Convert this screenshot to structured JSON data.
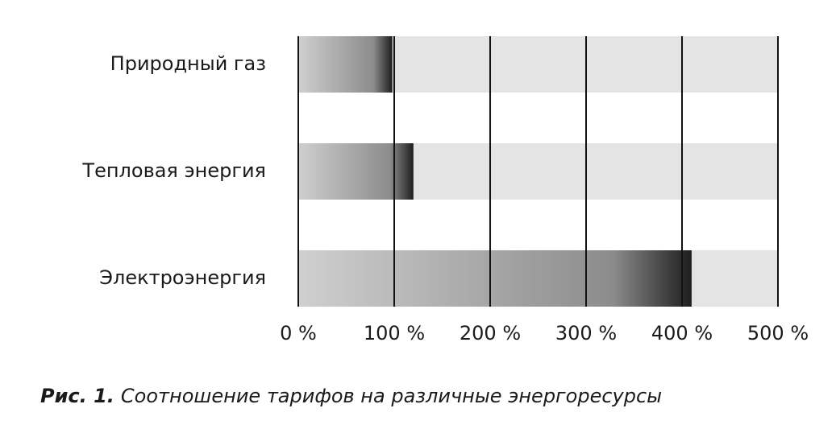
{
  "chart_data": {
    "type": "hbar",
    "categories": [
      "Природный газ",
      "Тепловая энергия",
      "Электроэнергия"
    ],
    "values": [
      98,
      120,
      410
    ],
    "color": "#1e1e1e",
    "band_color": "#e4e4e4",
    "xlim": [
      0,
      500
    ],
    "xticks": [
      {
        "value": 0,
        "label": "0 %"
      },
      {
        "value": 100,
        "label": "100 %"
      },
      {
        "value": 200,
        "label": "200 %"
      },
      {
        "value": 300,
        "label": "300 %"
      },
      {
        "value": 400,
        "label": "400 %"
      },
      {
        "value": 500,
        "label": "500 %"
      }
    ],
    "grid": true,
    "figure_label": "Рис. 1.",
    "title": "Соотношение тарифов на различные энергоресурсы"
  }
}
